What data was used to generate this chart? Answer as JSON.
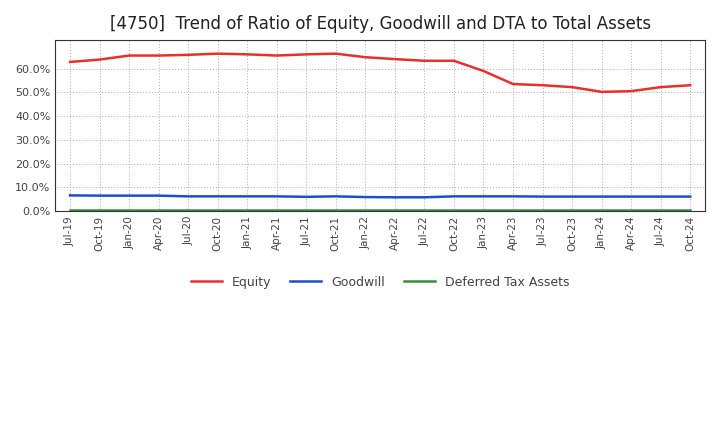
{
  "title": "[4750]  Trend of Ratio of Equity, Goodwill and DTA to Total Assets",
  "x_labels": [
    "Jul-19",
    "Oct-19",
    "Jan-20",
    "Apr-20",
    "Jul-20",
    "Oct-20",
    "Jan-21",
    "Apr-21",
    "Jul-21",
    "Oct-21",
    "Jan-22",
    "Apr-22",
    "Jul-22",
    "Oct-22",
    "Jan-23",
    "Apr-23",
    "Jul-23",
    "Oct-23",
    "Jan-24",
    "Apr-24",
    "Jul-24",
    "Oct-24"
  ],
  "equity": [
    0.628,
    0.638,
    0.655,
    0.655,
    0.658,
    0.663,
    0.66,
    0.655,
    0.66,
    0.663,
    0.648,
    0.64,
    0.633,
    0.633,
    0.59,
    0.535,
    0.53,
    0.522,
    0.502,
    0.505,
    0.522,
    0.53
  ],
  "goodwill": [
    0.066,
    0.065,
    0.065,
    0.065,
    0.062,
    0.062,
    0.062,
    0.062,
    0.06,
    0.062,
    0.059,
    0.058,
    0.058,
    0.062,
    0.062,
    0.062,
    0.061,
    0.061,
    0.061,
    0.061,
    0.061,
    0.061
  ],
  "dta": [
    0.005,
    0.005,
    0.005,
    0.005,
    0.005,
    0.005,
    0.005,
    0.005,
    0.005,
    0.005,
    0.005,
    0.005,
    0.005,
    0.005,
    0.005,
    0.005,
    0.005,
    0.005,
    0.005,
    0.005,
    0.005,
    0.005
  ],
  "equity_color": "#e8302a",
  "goodwill_color": "#1f4fc8",
  "dta_color": "#3a8c3a",
  "ylim": [
    0.0,
    0.72
  ],
  "yticks": [
    0.0,
    0.1,
    0.2,
    0.3,
    0.4,
    0.5,
    0.6
  ],
  "bg_color": "#ffffff",
  "plot_bg_color": "#ffffff",
  "grid_color": "#aaaaaa",
  "title_fontsize": 12,
  "legend_labels": [
    "Equity",
    "Goodwill",
    "Deferred Tax Assets"
  ]
}
